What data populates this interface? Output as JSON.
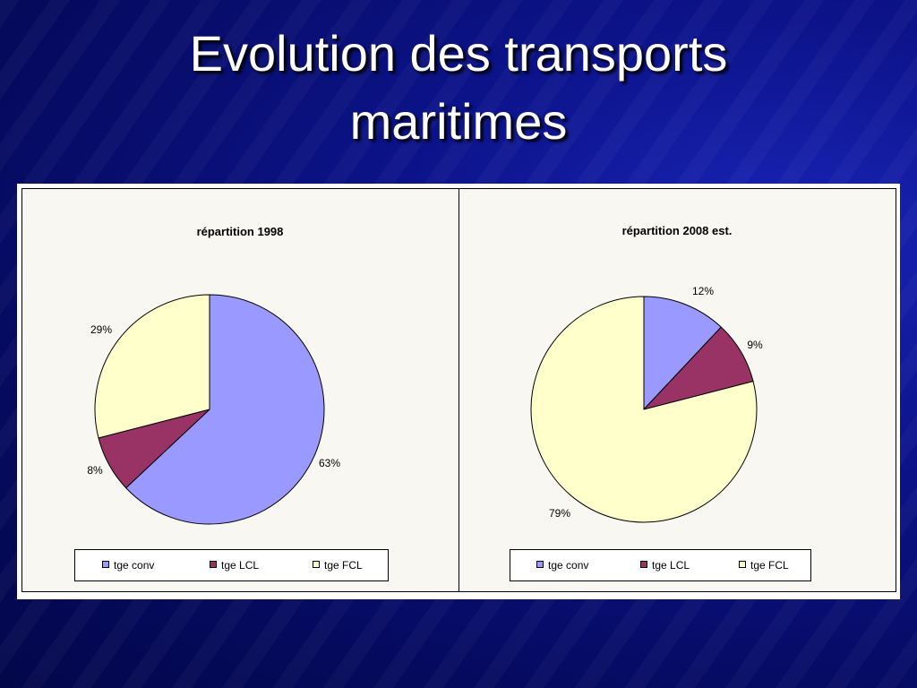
{
  "slide": {
    "title_line1": "Evolution des transports",
    "title_line2": "maritimes"
  },
  "chart_data": [
    {
      "type": "pie",
      "title": "répartition 1998",
      "categories": [
        "tge conv",
        "tge LCL",
        "tge FCL"
      ],
      "values": [
        63,
        8,
        29
      ],
      "labels": [
        "63%",
        "8%",
        "29%"
      ],
      "colors": [
        "#9999ff",
        "#993366",
        "#ffffcc"
      ],
      "legend": "bottom"
    },
    {
      "type": "pie",
      "title": "répartition 2008 est.",
      "categories": [
        "tge conv",
        "tge LCL",
        "tge FCL"
      ],
      "values": [
        12,
        9,
        79
      ],
      "labels": [
        "12%",
        "9%",
        "79%"
      ],
      "colors": [
        "#9999ff",
        "#993366",
        "#ffffcc"
      ],
      "legend": "bottom"
    }
  ]
}
